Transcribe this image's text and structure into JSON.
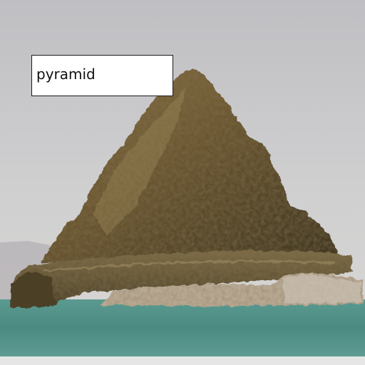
{
  "annotation": {
    "label": "pyramid"
  },
  "colors": {
    "sky": "#c9c9cb",
    "water": "#4e8f86",
    "rock_dark": "#4a3f22",
    "rock_mid": "#7a6236",
    "rock_light": "#a08a5a",
    "shore_tufa": "#b9a994",
    "label_background": "#ffffff",
    "label_border": "#1a1a1a"
  }
}
